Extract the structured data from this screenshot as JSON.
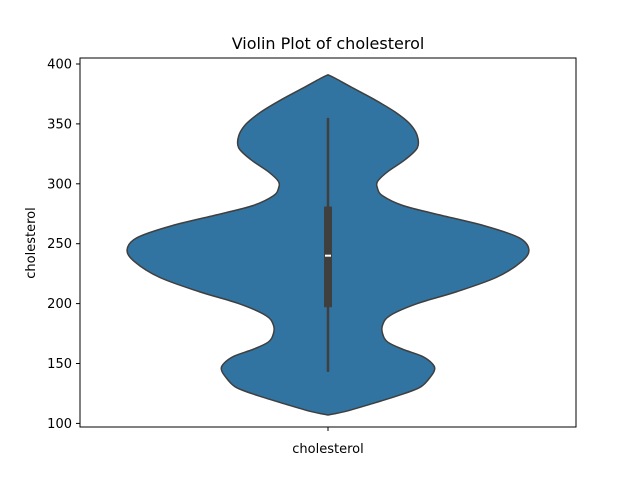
{
  "chart_data": {
    "type": "violin",
    "title": "Violin Plot of cholesterol",
    "xlabel": "",
    "ylabel": "cholesterol",
    "categories": [
      "cholesterol"
    ],
    "ylim": [
      97,
      405
    ],
    "yticks": [
      100,
      150,
      200,
      250,
      300,
      350,
      400
    ],
    "grid": false,
    "legend": "none",
    "series": [
      {
        "category": "cholesterol",
        "color": "#3274a1",
        "edge_color": "#3f3f3f",
        "density_profile": [
          {
            "y": 107,
            "half_width": 0.0
          },
          {
            "y": 110,
            "half_width": 0.07
          },
          {
            "y": 116,
            "half_width": 0.17
          },
          {
            "y": 123,
            "half_width": 0.28
          },
          {
            "y": 130,
            "half_width": 0.37
          },
          {
            "y": 138,
            "half_width": 0.41
          },
          {
            "y": 145,
            "half_width": 0.43
          },
          {
            "y": 150,
            "half_width": 0.42
          },
          {
            "y": 156,
            "half_width": 0.38
          },
          {
            "y": 162,
            "half_width": 0.3
          },
          {
            "y": 168,
            "half_width": 0.24
          },
          {
            "y": 175,
            "half_width": 0.22
          },
          {
            "y": 182,
            "half_width": 0.22
          },
          {
            "y": 190,
            "half_width": 0.25
          },
          {
            "y": 200,
            "half_width": 0.36
          },
          {
            "y": 210,
            "half_width": 0.52
          },
          {
            "y": 222,
            "half_width": 0.68
          },
          {
            "y": 235,
            "half_width": 0.78
          },
          {
            "y": 245,
            "half_width": 0.81
          },
          {
            "y": 255,
            "half_width": 0.77
          },
          {
            "y": 265,
            "half_width": 0.63
          },
          {
            "y": 275,
            "half_width": 0.43
          },
          {
            "y": 282,
            "half_width": 0.3
          },
          {
            "y": 290,
            "half_width": 0.22
          },
          {
            "y": 296,
            "half_width": 0.2
          },
          {
            "y": 302,
            "half_width": 0.2
          },
          {
            "y": 310,
            "half_width": 0.24
          },
          {
            "y": 320,
            "half_width": 0.31
          },
          {
            "y": 330,
            "half_width": 0.36
          },
          {
            "y": 340,
            "half_width": 0.36
          },
          {
            "y": 350,
            "half_width": 0.33
          },
          {
            "y": 360,
            "half_width": 0.27
          },
          {
            "y": 370,
            "half_width": 0.19
          },
          {
            "y": 380,
            "half_width": 0.1
          },
          {
            "y": 388,
            "half_width": 0.03
          },
          {
            "y": 391,
            "half_width": 0.0
          }
        ],
        "box": {
          "whisker_low": 143,
          "q1": 197,
          "median": 240,
          "q3": 281,
          "whisker_high": 355
        }
      }
    ]
  }
}
